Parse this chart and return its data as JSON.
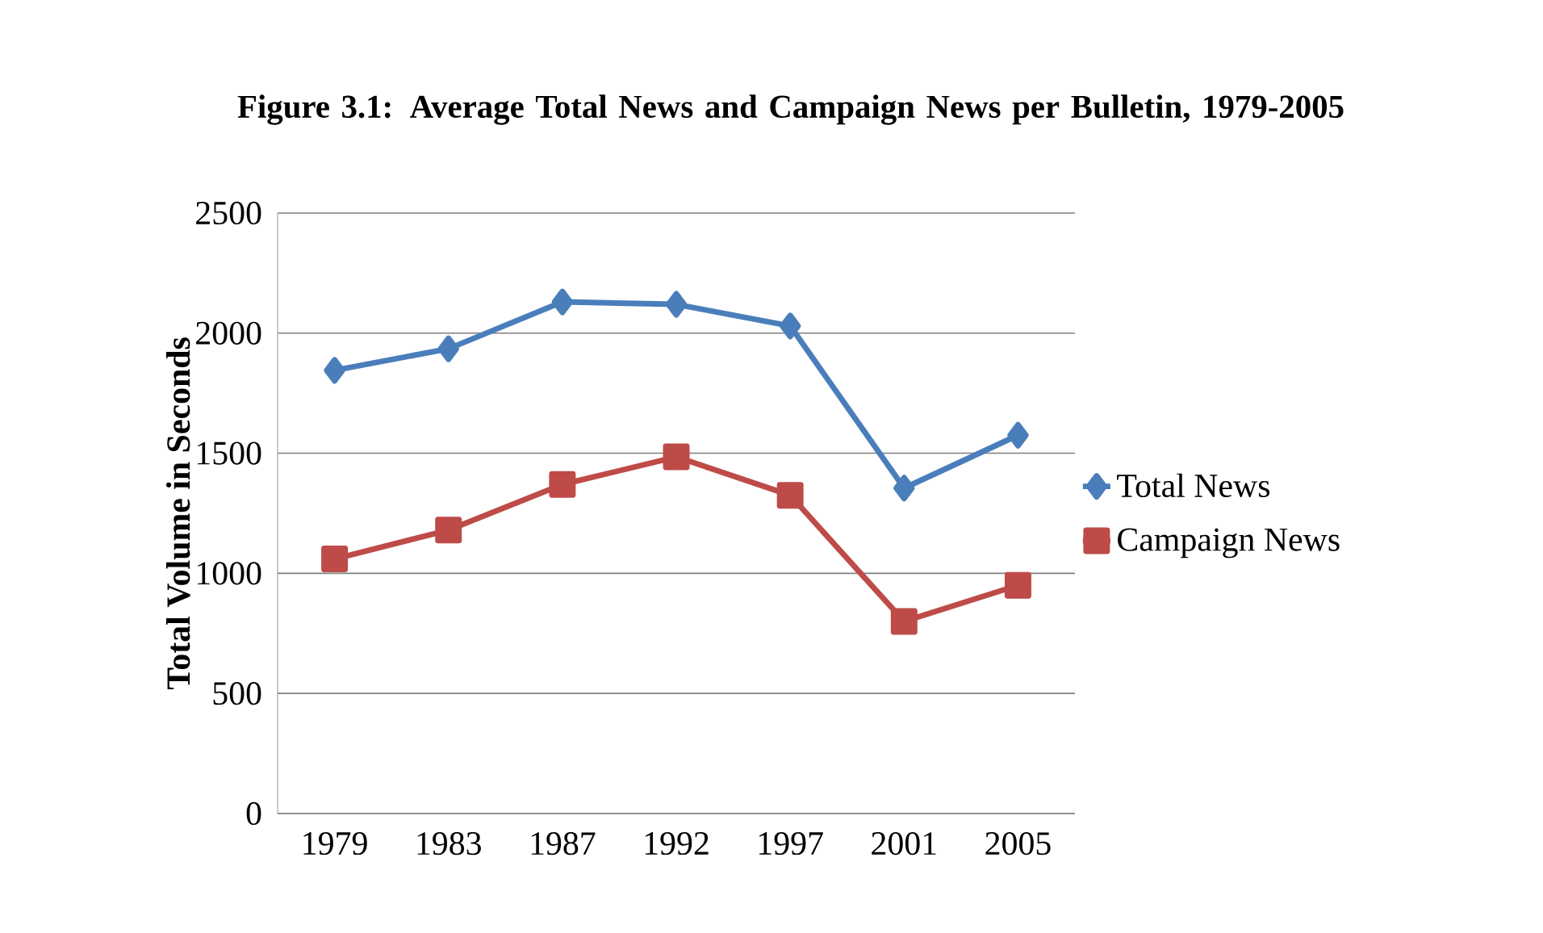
{
  "chart_data": {
    "type": "line",
    "title": "Figure 3.1: Average Total News and Campaign News per Bulletin, 1979-2005",
    "ylabel": "Total Volume in Seconds",
    "categories": [
      "1979",
      "1983",
      "1987",
      "1992",
      "1997",
      "2001",
      "2005"
    ],
    "series": [
      {
        "name": "Total News",
        "color": "#4a7ebb",
        "marker": "diamond",
        "values": [
          1845,
          1935,
          2130,
          2120,
          2030,
          1355,
          1575
        ]
      },
      {
        "name": "Campaign News",
        "color": "#be4b48",
        "marker": "square",
        "values": [
          1060,
          1180,
          1370,
          1485,
          1325,
          800,
          950
        ]
      }
    ],
    "ylim": [
      0,
      2500
    ],
    "yticks": [
      0,
      500,
      1000,
      1500,
      2000,
      2500
    ],
    "grid": "y",
    "legend": "right",
    "line_style": "solid"
  }
}
